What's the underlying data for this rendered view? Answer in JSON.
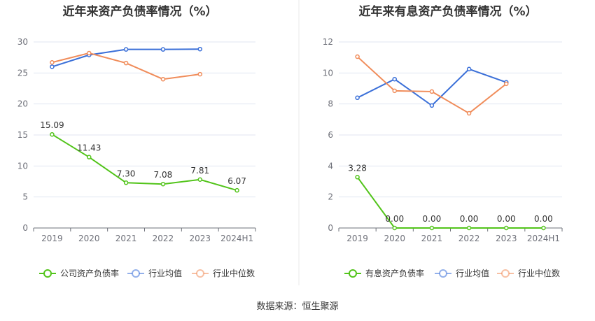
{
  "source": "数据来源：恒生聚源",
  "chart_data": [
    {
      "type": "line",
      "title": "近年来资产负债率情况（%）",
      "categories": [
        "2019",
        "2020",
        "2021",
        "2022",
        "2023",
        "2024H1"
      ],
      "y_ticks": [
        "0",
        "5",
        "10",
        "15",
        "20",
        "25",
        "30"
      ],
      "ylim": [
        0,
        30
      ],
      "grid": true,
      "legend_position": "bottom",
      "series": [
        {
          "name": "公司资产负债率",
          "color": "#52c41a",
          "values": [
            15.09,
            11.43,
            7.3,
            7.08,
            7.81,
            6.07
          ],
          "labels": [
            "15.09",
            "11.43",
            "7.30",
            "7.08",
            "7.81",
            "6.07"
          ]
        },
        {
          "name": "行业均值",
          "color": "#3a6fd8",
          "values": [
            26.0,
            27.9,
            28.8,
            28.8,
            28.85,
            null
          ]
        },
        {
          "name": "行业中位数",
          "color": "#f08c5a",
          "values": [
            26.7,
            28.2,
            26.6,
            24.0,
            24.8,
            null
          ]
        }
      ]
    },
    {
      "type": "line",
      "title": "近年来有息资产负债率情况（%）",
      "categories": [
        "2019",
        "2020",
        "2021",
        "2022",
        "2023",
        "2024H1"
      ],
      "y_ticks": [
        "0",
        "2",
        "4",
        "6",
        "8",
        "10",
        "12"
      ],
      "ylim": [
        0,
        12
      ],
      "grid": true,
      "legend_position": "bottom",
      "series": [
        {
          "name": "有息资产负债率",
          "color": "#52c41a",
          "values": [
            3.28,
            0.0,
            0.0,
            0.0,
            0.0,
            0.0
          ],
          "labels": [
            "3.28",
            "0.00",
            "0.00",
            "0.00",
            "0.00",
            "0.00"
          ]
        },
        {
          "name": "行业均值",
          "color": "#3a6fd8",
          "values": [
            8.4,
            9.6,
            7.9,
            10.25,
            9.4,
            null
          ]
        },
        {
          "name": "行业中位数",
          "color": "#f08c5a",
          "values": [
            11.05,
            8.85,
            8.8,
            7.4,
            9.3,
            null
          ]
        }
      ]
    }
  ]
}
